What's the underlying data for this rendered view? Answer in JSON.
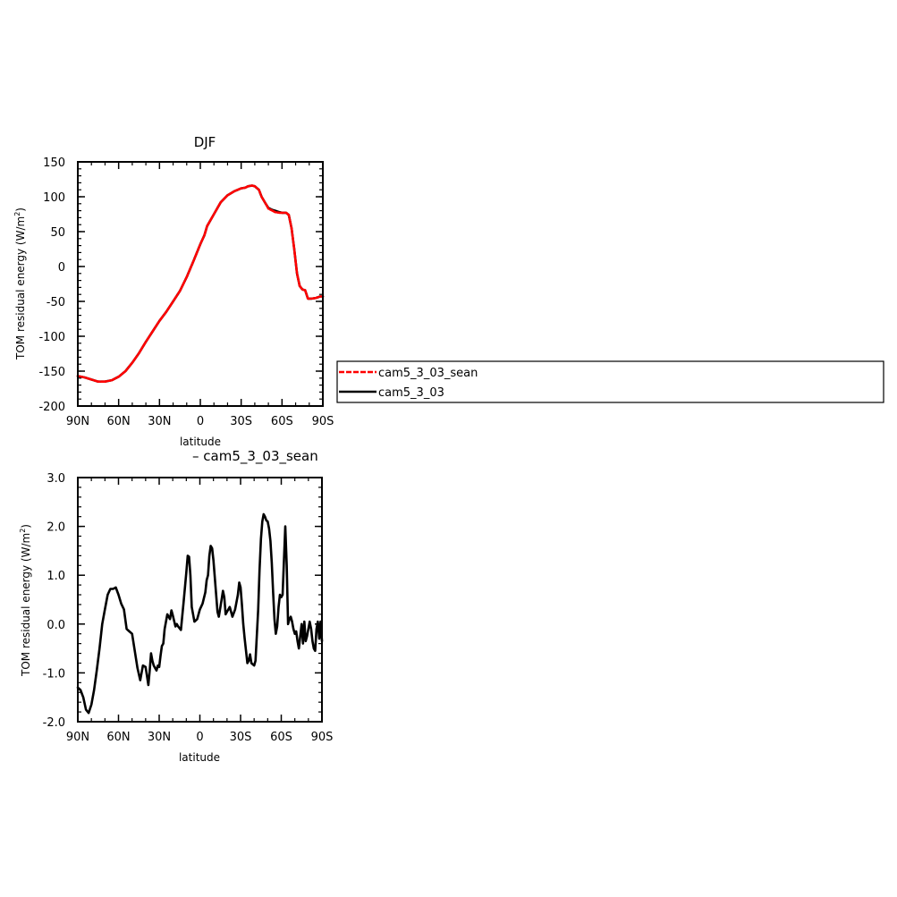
{
  "chart_data": [
    {
      "type": "line",
      "title": "DJF",
      "xlabel": "latitude",
      "ylabel_main": "TOM residual energy (W/m",
      "ylabel_sup": "2",
      "ylabel_close": ")",
      "x_tick_labels": [
        "90N",
        "60N",
        "30N",
        "0",
        "30S",
        "60S",
        "90S"
      ],
      "x_ticks": [
        90,
        60,
        30,
        0,
        -30,
        -60,
        -90
      ],
      "xlim": [
        90,
        -90
      ],
      "y_ticks": [
        -200,
        -150,
        -100,
        -50,
        0,
        50,
        100,
        150
      ],
      "y_tick_labels": [
        "-200",
        "-150",
        "-100",
        "-50",
        "0",
        "50",
        "100",
        "150"
      ],
      "ylim": [
        -200,
        150
      ],
      "series": [
        {
          "name": "cam5_3_03",
          "color": "#000000",
          "style": "solid",
          "points": [
            [
              90,
              -157
            ],
            [
              85,
              -159
            ],
            [
              80,
              -162
            ],
            [
              75,
              -165
            ],
            [
              70,
              -165
            ],
            [
              65,
              -163
            ],
            [
              60,
              -158
            ],
            [
              55,
              -150
            ],
            [
              50,
              -138
            ],
            [
              45,
              -124
            ],
            [
              40,
              -108
            ],
            [
              35,
              -93
            ],
            [
              30,
              -78
            ],
            [
              25,
              -65
            ],
            [
              20,
              -50
            ],
            [
              15,
              -35
            ],
            [
              10,
              -15
            ],
            [
              5,
              8
            ],
            [
              0,
              32
            ],
            [
              -3,
              45
            ],
            [
              -5,
              58
            ],
            [
              -10,
              75
            ],
            [
              -15,
              92
            ],
            [
              -20,
              102
            ],
            [
              -25,
              108
            ],
            [
              -30,
              112
            ],
            [
              -33,
              113
            ],
            [
              -35,
              115
            ],
            [
              -38,
              116
            ],
            [
              -40,
              115
            ],
            [
              -43,
              110
            ],
            [
              -45,
              100
            ],
            [
              -48,
              90
            ],
            [
              -50,
              84
            ],
            [
              -53,
              81
            ],
            [
              -55,
              80
            ],
            [
              -58,
              78
            ],
            [
              -60,
              77
            ],
            [
              -63,
              77
            ],
            [
              -65,
              74
            ],
            [
              -67,
              55
            ],
            [
              -69,
              25
            ],
            [
              -71,
              -10
            ],
            [
              -73,
              -28
            ],
            [
              -75,
              -33
            ],
            [
              -77,
              -34
            ],
            [
              -79,
              -46
            ],
            [
              -82,
              -46
            ],
            [
              -85,
              -45
            ],
            [
              -88,
              -43
            ],
            [
              -90,
              -43
            ]
          ]
        },
        {
          "name": "cam5_3_03_sean",
          "color": "#ff0000",
          "style": "dashed",
          "points": [
            [
              90,
              -157
            ],
            [
              85,
              -159
            ],
            [
              80,
              -162
            ],
            [
              75,
              -165
            ],
            [
              70,
              -165
            ],
            [
              65,
              -163
            ],
            [
              60,
              -158
            ],
            [
              55,
              -150
            ],
            [
              50,
              -138
            ],
            [
              45,
              -124
            ],
            [
              40,
              -108
            ],
            [
              35,
              -93
            ],
            [
              30,
              -78
            ],
            [
              25,
              -65
            ],
            [
              20,
              -50
            ],
            [
              15,
              -35
            ],
            [
              10,
              -15
            ],
            [
              5,
              8
            ],
            [
              0,
              32
            ],
            [
              -3,
              45
            ],
            [
              -5,
              58
            ],
            [
              -10,
              75
            ],
            [
              -15,
              92
            ],
            [
              -20,
              102
            ],
            [
              -25,
              108
            ],
            [
              -30,
              112
            ],
            [
              -33,
              113
            ],
            [
              -35,
              115
            ],
            [
              -38,
              116
            ],
            [
              -40,
              115
            ],
            [
              -43,
              110
            ],
            [
              -45,
              100
            ],
            [
              -48,
              90
            ],
            [
              -50,
              83
            ],
            [
              -53,
              80
            ],
            [
              -55,
              78
            ],
            [
              -58,
              77
            ],
            [
              -60,
              77
            ],
            [
              -63,
              77
            ],
            [
              -65,
              74
            ],
            [
              -67,
              55
            ],
            [
              -69,
              25
            ],
            [
              -71,
              -10
            ],
            [
              -73,
              -28
            ],
            [
              -75,
              -33
            ],
            [
              -77,
              -34
            ],
            [
              -79,
              -46
            ],
            [
              -82,
              -46
            ],
            [
              -85,
              -45
            ],
            [
              -88,
              -43
            ],
            [
              -90,
              -43
            ]
          ]
        }
      ],
      "legend": {
        "placement": "right",
        "entries": [
          {
            "label": "cam5_3_03_sean",
            "color": "#ff0000",
            "style": "dashed"
          },
          {
            "label": "cam5_3_03",
            "color": "#000000",
            "style": "solid"
          }
        ]
      }
    },
    {
      "type": "line",
      "title": "– cam5_3_03_sean",
      "xlabel": "latitude",
      "ylabel_main": "TOM residual energy (W/m",
      "ylabel_sup": "2",
      "ylabel_close": ")",
      "x_tick_labels": [
        "90N",
        "60N",
        "30N",
        "0",
        "30S",
        "60S",
        "90S"
      ],
      "x_ticks": [
        90,
        60,
        30,
        0,
        -30,
        -60,
        -90
      ],
      "xlim": [
        90,
        -90
      ],
      "y_ticks": [
        -2.0,
        -1.0,
        0.0,
        1.0,
        2.0,
        3.0
      ],
      "y_tick_labels": [
        "-2.0",
        "-1.0",
        "0.0",
        "1.0",
        "2.0",
        "3.0"
      ],
      "ylim": [
        -2.0,
        3.0
      ],
      "series": [
        {
          "color": "#000000",
          "style": "solid",
          "points": [
            [
              90,
              -1.3
            ],
            [
              88,
              -1.35
            ],
            [
              86,
              -1.5
            ],
            [
              84,
              -1.75
            ],
            [
              82,
              -1.82
            ],
            [
              80,
              -1.65
            ],
            [
              78,
              -1.35
            ],
            [
              76,
              -0.95
            ],
            [
              74,
              -0.5
            ],
            [
              72,
              0.0
            ],
            [
              70,
              0.3
            ],
            [
              68,
              0.6
            ],
            [
              66,
              0.72
            ],
            [
              64,
              0.72
            ],
            [
              62,
              0.75
            ],
            [
              60,
              0.6
            ],
            [
              58,
              0.42
            ],
            [
              56,
              0.3
            ],
            [
              54,
              -0.1
            ],
            [
              52,
              -0.15
            ],
            [
              50,
              -0.2
            ],
            [
              48,
              -0.55
            ],
            [
              46,
              -0.9
            ],
            [
              44,
              -1.15
            ],
            [
              42,
              -0.85
            ],
            [
              40,
              -0.88
            ],
            [
              38,
              -1.25
            ],
            [
              37,
              -0.95
            ],
            [
              36,
              -0.6
            ],
            [
              35,
              -0.75
            ],
            [
              34,
              -0.85
            ],
            [
              32,
              -0.95
            ],
            [
              31,
              -0.85
            ],
            [
              30,
              -0.88
            ],
            [
              29,
              -0.65
            ],
            [
              28,
              -0.45
            ],
            [
              27,
              -0.4
            ],
            [
              26,
              -0.1
            ],
            [
              24,
              0.2
            ],
            [
              22,
              0.1
            ],
            [
              21,
              0.28
            ],
            [
              20,
              0.18
            ],
            [
              18,
              -0.05
            ],
            [
              17,
              0.0
            ],
            [
              16,
              -0.05
            ],
            [
              14,
              -0.12
            ],
            [
              12,
              0.45
            ],
            [
              10,
              1.05
            ],
            [
              9,
              1.4
            ],
            [
              8,
              1.38
            ],
            [
              7,
              1.0
            ],
            [
              6,
              0.35
            ],
            [
              4,
              0.05
            ],
            [
              2,
              0.1
            ],
            [
              0,
              0.3
            ],
            [
              -2,
              0.42
            ],
            [
              -4,
              0.65
            ],
            [
              -5,
              0.9
            ],
            [
              -6,
              1.0
            ],
            [
              -7,
              1.4
            ],
            [
              -8,
              1.6
            ],
            [
              -9,
              1.55
            ],
            [
              -10,
              1.3
            ],
            [
              -12,
              0.6
            ],
            [
              -13,
              0.25
            ],
            [
              -14,
              0.15
            ],
            [
              -16,
              0.5
            ],
            [
              -17,
              0.68
            ],
            [
              -18,
              0.55
            ],
            [
              -19,
              0.2
            ],
            [
              -20,
              0.25
            ],
            [
              -22,
              0.35
            ],
            [
              -24,
              0.15
            ],
            [
              -26,
              0.3
            ],
            [
              -28,
              0.6
            ],
            [
              -29,
              0.85
            ],
            [
              -30,
              0.75
            ],
            [
              -31,
              0.4
            ],
            [
              -32,
              0.0
            ],
            [
              -33,
              -0.3
            ],
            [
              -34,
              -0.55
            ],
            [
              -35,
              -0.8
            ],
            [
              -36,
              -0.75
            ],
            [
              -37,
              -0.62
            ],
            [
              -38,
              -0.8
            ],
            [
              -40,
              -0.85
            ],
            [
              -41,
              -0.75
            ],
            [
              -43,
              0.3
            ],
            [
              -44,
              1.1
            ],
            [
              -45,
              1.75
            ],
            [
              -46,
              2.1
            ],
            [
              -47,
              2.25
            ],
            [
              -48,
              2.2
            ],
            [
              -49,
              2.12
            ],
            [
              -50,
              2.1
            ],
            [
              -51,
              1.95
            ],
            [
              -52,
              1.7
            ],
            [
              -53,
              1.25
            ],
            [
              -54,
              0.65
            ],
            [
              -55,
              0.1
            ],
            [
              -56,
              -0.2
            ],
            [
              -57,
              -0.05
            ],
            [
              -58,
              0.35
            ],
            [
              -59,
              0.6
            ],
            [
              -60,
              0.55
            ],
            [
              -61,
              0.6
            ],
            [
              -62,
              1.3
            ],
            [
              -63,
              2.0
            ],
            [
              -64,
              1.2
            ],
            [
              -65,
              0.0
            ],
            [
              -66,
              0.1
            ],
            [
              -67,
              0.15
            ],
            [
              -68,
              0.05
            ],
            [
              -69,
              -0.1
            ],
            [
              -70,
              -0.2
            ],
            [
              -71,
              -0.15
            ],
            [
              -72,
              -0.35
            ],
            [
              -73,
              -0.5
            ],
            [
              -74,
              -0.25
            ],
            [
              -75,
              0.0
            ],
            [
              -76,
              -0.4
            ],
            [
              -77,
              0.05
            ],
            [
              -78,
              -0.35
            ],
            [
              -79,
              -0.25
            ],
            [
              -80,
              -0.1
            ],
            [
              -81,
              0.05
            ],
            [
              -82,
              -0.1
            ],
            [
              -83,
              -0.35
            ],
            [
              -84,
              -0.5
            ],
            [
              -85,
              -0.55
            ],
            [
              -86,
              -0.1
            ],
            [
              -87,
              0.05
            ],
            [
              -88,
              -0.3
            ],
            [
              -89,
              0.05
            ],
            [
              -90,
              -0.35
            ]
          ]
        }
      ]
    }
  ]
}
